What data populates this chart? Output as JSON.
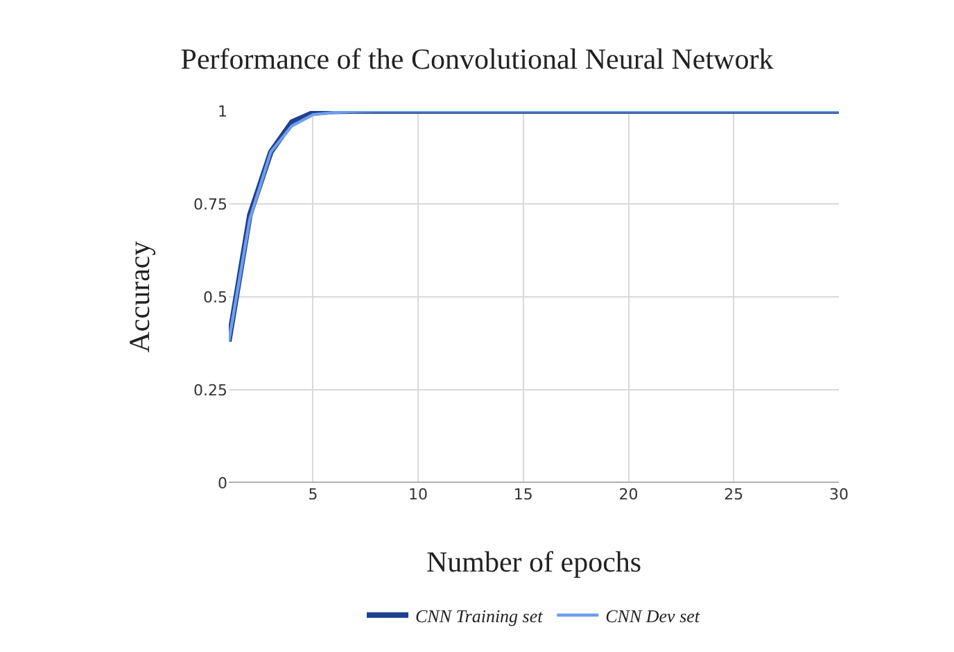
{
  "chart_data": {
    "type": "line",
    "title": "Performance of the Convolutional Neural Network",
    "xlabel": "Number of epochs",
    "ylabel": "Accuracy",
    "x": [
      1,
      2,
      3,
      4,
      5,
      6,
      7,
      8,
      9,
      10,
      11,
      12,
      13,
      14,
      15,
      16,
      17,
      18,
      19,
      20,
      21,
      22,
      23,
      24,
      25,
      26,
      27,
      28,
      29,
      30
    ],
    "series": [
      {
        "name": "CNN Training set",
        "color": "#1f3f8f",
        "values": [
          0.38,
          0.72,
          0.89,
          0.97,
          0.995,
          0.999,
          1,
          1,
          1,
          1,
          1,
          1,
          1,
          1,
          1,
          1,
          1,
          1,
          1,
          1,
          1,
          1,
          1,
          1,
          1,
          1,
          1,
          1,
          1,
          1
        ]
      },
      {
        "name": "CNN Dev set",
        "color": "#6d9eeb",
        "values": [
          0.38,
          0.71,
          0.89,
          0.96,
          0.99,
          0.996,
          0.999,
          1,
          1,
          1,
          1,
          1,
          1,
          1,
          1,
          1,
          1,
          1,
          1,
          1,
          1,
          1,
          1,
          1,
          1,
          1,
          1,
          1,
          1,
          1
        ]
      }
    ],
    "xlim": [
      1,
      30
    ],
    "xticks": [
      5,
      10,
      15,
      20,
      25,
      30
    ],
    "ylim": [
      0,
      1
    ],
    "yticks": [
      0,
      0.25,
      0.5,
      0.75,
      1
    ],
    "grid": true,
    "legend": "bottom",
    "marker": "none",
    "line_style": "solid"
  }
}
